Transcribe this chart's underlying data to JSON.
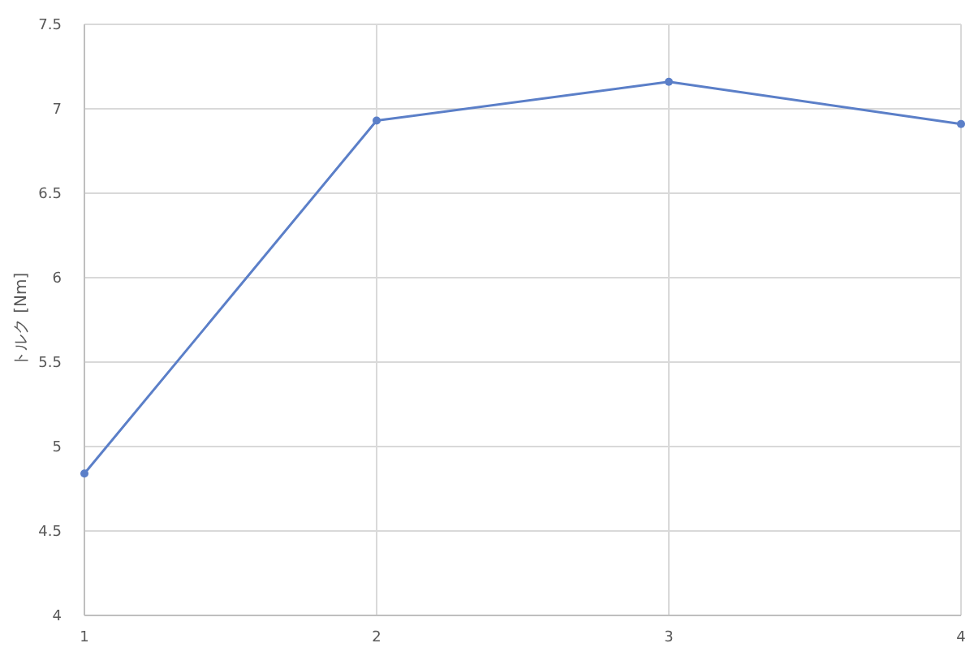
{
  "chart_data": {
    "type": "line",
    "ylabel": "トルク [Nm]",
    "x": [
      1,
      2,
      3,
      4
    ],
    "series": [
      {
        "color": "#5b7fc8",
        "values": [
          4.84,
          6.93,
          7.16,
          6.91
        ]
      }
    ],
    "xlim": [
      1,
      4
    ],
    "xticks": [
      1,
      2,
      3,
      4
    ],
    "ylim": [
      4,
      7.5
    ],
    "yticks": [
      4,
      4.5,
      5,
      5.5,
      6,
      6.5,
      7,
      7.5
    ],
    "grid": true,
    "marker": "circle"
  }
}
